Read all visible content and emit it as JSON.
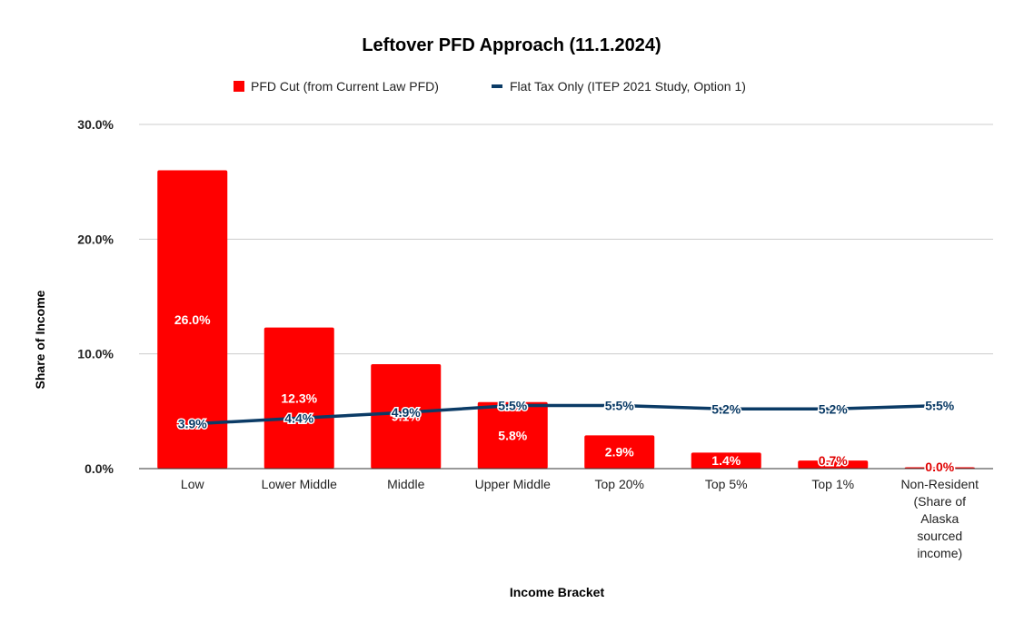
{
  "chart_data": {
    "type": "bar",
    "title": "Leftover PFD Approach (11.1.2024)",
    "xlabel": "Income Bracket",
    "ylabel": "Share of Income",
    "ylim": [
      0,
      30
    ],
    "yticks": [
      0,
      10,
      20,
      30
    ],
    "ytick_labels": [
      "0.0%",
      "10.0%",
      "20.0%",
      "30.0%"
    ],
    "grid": true,
    "legend_position": "top",
    "categories": [
      [
        "Low"
      ],
      [
        "Lower Middle"
      ],
      [
        "Middle"
      ],
      [
        "Upper Middle"
      ],
      [
        "Top 20%"
      ],
      [
        "Top 5%"
      ],
      [
        "Top 1%"
      ],
      [
        "Non-Resident",
        "(Share of",
        "Alaska",
        "sourced",
        "income)"
      ]
    ],
    "series": [
      {
        "name": "PFD Cut (from Current Law PFD)",
        "type": "bar",
        "color": "#ff0000",
        "values": [
          26.0,
          12.3,
          9.1,
          5.8,
          2.9,
          1.4,
          0.7,
          0.0
        ],
        "labels": [
          "26.0%",
          "12.3%",
          "9.1%",
          "5.8%",
          "2.9%",
          "1.4%",
          "0.7%",
          "0.0%"
        ]
      },
      {
        "name": "Flat Tax Only (ITEP 2021 Study, Option 1)",
        "type": "line",
        "color": "#0b3b66",
        "values": [
          3.9,
          4.4,
          4.9,
          5.5,
          5.5,
          5.2,
          5.2,
          5.5
        ],
        "labels": [
          "3.9%",
          "4.4%",
          "4.9%",
          "5.5%",
          "5.5%",
          "5.2%",
          "5.2%",
          "5.5%"
        ]
      }
    ]
  }
}
